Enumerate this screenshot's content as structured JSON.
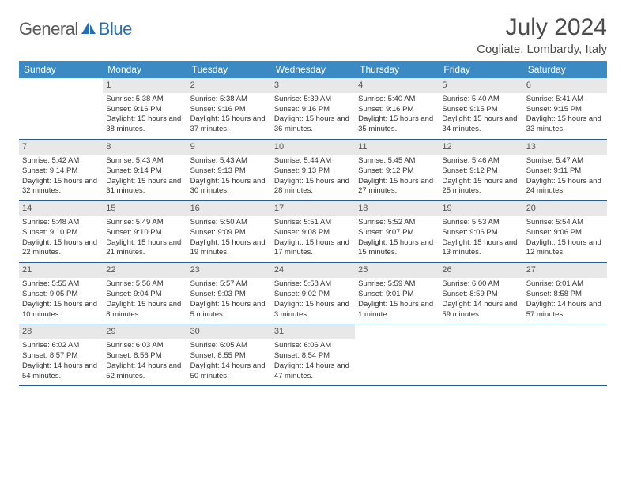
{
  "logo": {
    "word1": "General",
    "word2": "Blue"
  },
  "title": "July 2024",
  "location": "Cogliate, Lombardy, Italy",
  "colors": {
    "header_bg": "#3b8ac4",
    "header_text": "#ffffff",
    "rule": "#2a5a8a",
    "daynum_bg": "#e8e8e8",
    "text": "#333333",
    "logo_gray": "#5a5a5a",
    "logo_blue": "#2a6db0"
  },
  "weekdays": [
    "Sunday",
    "Monday",
    "Tuesday",
    "Wednesday",
    "Thursday",
    "Friday",
    "Saturday"
  ],
  "weeks": [
    [
      {
        "n": "",
        "sr": "",
        "ss": "",
        "dl": ""
      },
      {
        "n": "1",
        "sr": "Sunrise: 5:38 AM",
        "ss": "Sunset: 9:16 PM",
        "dl": "Daylight: 15 hours and 38 minutes."
      },
      {
        "n": "2",
        "sr": "Sunrise: 5:38 AM",
        "ss": "Sunset: 9:16 PM",
        "dl": "Daylight: 15 hours and 37 minutes."
      },
      {
        "n": "3",
        "sr": "Sunrise: 5:39 AM",
        "ss": "Sunset: 9:16 PM",
        "dl": "Daylight: 15 hours and 36 minutes."
      },
      {
        "n": "4",
        "sr": "Sunrise: 5:40 AM",
        "ss": "Sunset: 9:16 PM",
        "dl": "Daylight: 15 hours and 35 minutes."
      },
      {
        "n": "5",
        "sr": "Sunrise: 5:40 AM",
        "ss": "Sunset: 9:15 PM",
        "dl": "Daylight: 15 hours and 34 minutes."
      },
      {
        "n": "6",
        "sr": "Sunrise: 5:41 AM",
        "ss": "Sunset: 9:15 PM",
        "dl": "Daylight: 15 hours and 33 minutes."
      }
    ],
    [
      {
        "n": "7",
        "sr": "Sunrise: 5:42 AM",
        "ss": "Sunset: 9:14 PM",
        "dl": "Daylight: 15 hours and 32 minutes."
      },
      {
        "n": "8",
        "sr": "Sunrise: 5:43 AM",
        "ss": "Sunset: 9:14 PM",
        "dl": "Daylight: 15 hours and 31 minutes."
      },
      {
        "n": "9",
        "sr": "Sunrise: 5:43 AM",
        "ss": "Sunset: 9:13 PM",
        "dl": "Daylight: 15 hours and 30 minutes."
      },
      {
        "n": "10",
        "sr": "Sunrise: 5:44 AM",
        "ss": "Sunset: 9:13 PM",
        "dl": "Daylight: 15 hours and 28 minutes."
      },
      {
        "n": "11",
        "sr": "Sunrise: 5:45 AM",
        "ss": "Sunset: 9:12 PM",
        "dl": "Daylight: 15 hours and 27 minutes."
      },
      {
        "n": "12",
        "sr": "Sunrise: 5:46 AM",
        "ss": "Sunset: 9:12 PM",
        "dl": "Daylight: 15 hours and 25 minutes."
      },
      {
        "n": "13",
        "sr": "Sunrise: 5:47 AM",
        "ss": "Sunset: 9:11 PM",
        "dl": "Daylight: 15 hours and 24 minutes."
      }
    ],
    [
      {
        "n": "14",
        "sr": "Sunrise: 5:48 AM",
        "ss": "Sunset: 9:10 PM",
        "dl": "Daylight: 15 hours and 22 minutes."
      },
      {
        "n": "15",
        "sr": "Sunrise: 5:49 AM",
        "ss": "Sunset: 9:10 PM",
        "dl": "Daylight: 15 hours and 21 minutes."
      },
      {
        "n": "16",
        "sr": "Sunrise: 5:50 AM",
        "ss": "Sunset: 9:09 PM",
        "dl": "Daylight: 15 hours and 19 minutes."
      },
      {
        "n": "17",
        "sr": "Sunrise: 5:51 AM",
        "ss": "Sunset: 9:08 PM",
        "dl": "Daylight: 15 hours and 17 minutes."
      },
      {
        "n": "18",
        "sr": "Sunrise: 5:52 AM",
        "ss": "Sunset: 9:07 PM",
        "dl": "Daylight: 15 hours and 15 minutes."
      },
      {
        "n": "19",
        "sr": "Sunrise: 5:53 AM",
        "ss": "Sunset: 9:06 PM",
        "dl": "Daylight: 15 hours and 13 minutes."
      },
      {
        "n": "20",
        "sr": "Sunrise: 5:54 AM",
        "ss": "Sunset: 9:06 PM",
        "dl": "Daylight: 15 hours and 12 minutes."
      }
    ],
    [
      {
        "n": "21",
        "sr": "Sunrise: 5:55 AM",
        "ss": "Sunset: 9:05 PM",
        "dl": "Daylight: 15 hours and 10 minutes."
      },
      {
        "n": "22",
        "sr": "Sunrise: 5:56 AM",
        "ss": "Sunset: 9:04 PM",
        "dl": "Daylight: 15 hours and 8 minutes."
      },
      {
        "n": "23",
        "sr": "Sunrise: 5:57 AM",
        "ss": "Sunset: 9:03 PM",
        "dl": "Daylight: 15 hours and 5 minutes."
      },
      {
        "n": "24",
        "sr": "Sunrise: 5:58 AM",
        "ss": "Sunset: 9:02 PM",
        "dl": "Daylight: 15 hours and 3 minutes."
      },
      {
        "n": "25",
        "sr": "Sunrise: 5:59 AM",
        "ss": "Sunset: 9:01 PM",
        "dl": "Daylight: 15 hours and 1 minute."
      },
      {
        "n": "26",
        "sr": "Sunrise: 6:00 AM",
        "ss": "Sunset: 8:59 PM",
        "dl": "Daylight: 14 hours and 59 minutes."
      },
      {
        "n": "27",
        "sr": "Sunrise: 6:01 AM",
        "ss": "Sunset: 8:58 PM",
        "dl": "Daylight: 14 hours and 57 minutes."
      }
    ],
    [
      {
        "n": "28",
        "sr": "Sunrise: 6:02 AM",
        "ss": "Sunset: 8:57 PM",
        "dl": "Daylight: 14 hours and 54 minutes."
      },
      {
        "n": "29",
        "sr": "Sunrise: 6:03 AM",
        "ss": "Sunset: 8:56 PM",
        "dl": "Daylight: 14 hours and 52 minutes."
      },
      {
        "n": "30",
        "sr": "Sunrise: 6:05 AM",
        "ss": "Sunset: 8:55 PM",
        "dl": "Daylight: 14 hours and 50 minutes."
      },
      {
        "n": "31",
        "sr": "Sunrise: 6:06 AM",
        "ss": "Sunset: 8:54 PM",
        "dl": "Daylight: 14 hours and 47 minutes."
      },
      {
        "n": "",
        "sr": "",
        "ss": "",
        "dl": ""
      },
      {
        "n": "",
        "sr": "",
        "ss": "",
        "dl": ""
      },
      {
        "n": "",
        "sr": "",
        "ss": "",
        "dl": ""
      }
    ]
  ]
}
